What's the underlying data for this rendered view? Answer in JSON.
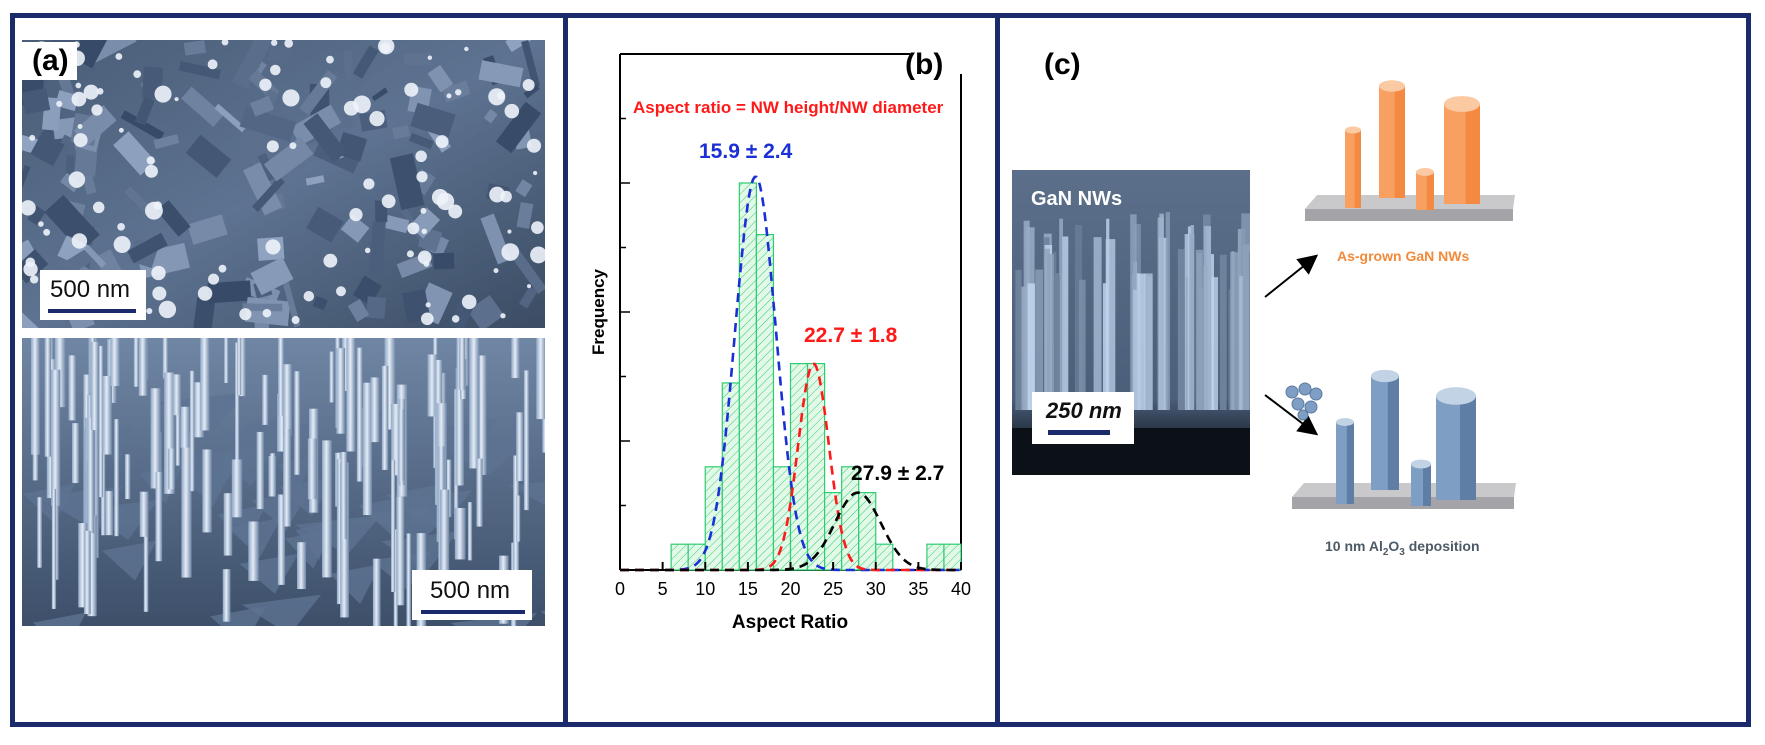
{
  "panels": {
    "a": {
      "label": "(a)",
      "top_scale_text": "500 nm",
      "bottom_scale_text": "500 nm"
    },
    "b": {
      "label": "(b)"
    },
    "c": {
      "label": "(c)",
      "sem_title": "GaN NWs",
      "sem_scale_text": "250 nm",
      "caption_top": "As-grown GaN NWs",
      "caption_bottom_prefix": "10 nm Al",
      "caption_bottom_sub1": "2",
      "caption_bottom_mid": "O",
      "caption_bottom_sub2": "3",
      "caption_bottom_suffix": " deposition"
    }
  },
  "colors": {
    "frame": "#1b2a6b",
    "bar_stroke": "#2ecc71",
    "bar_fill": "#e3f9e8",
    "fit1": "#1a2fd6",
    "fit2": "#ff1a1a",
    "fit3": "#000000",
    "orange_nw": "#f7a062",
    "blue_nw": "#7f9ec3",
    "caption_orange": "#f28a3a",
    "caption_gray": "#4d5a66"
  },
  "chart_data": {
    "type": "bar",
    "xlabel": "Aspect Ratio",
    "ylabel": "Frequency",
    "xlim": [
      0,
      40
    ],
    "ylim": [
      0,
      8
    ],
    "xticks": [
      0,
      5,
      10,
      15,
      20,
      25,
      30,
      35,
      40
    ],
    "bin_width": 2,
    "bins": [
      {
        "x": 7,
        "value": 0.4
      },
      {
        "x": 9,
        "value": 0.4
      },
      {
        "x": 11,
        "value": 1.6
      },
      {
        "x": 13,
        "value": 2.9
      },
      {
        "x": 15,
        "value": 6.0
      },
      {
        "x": 17,
        "value": 5.2
      },
      {
        "x": 19,
        "value": 1.6
      },
      {
        "x": 21,
        "value": 3.2
      },
      {
        "x": 23,
        "value": 3.2
      },
      {
        "x": 25,
        "value": 1.2
      },
      {
        "x": 27,
        "value": 1.6
      },
      {
        "x": 29,
        "value": 1.2
      },
      {
        "x": 31,
        "value": 0.4
      },
      {
        "x": 37,
        "value": 0.4
      },
      {
        "x": 39,
        "value": 0.4
      }
    ],
    "fits": [
      {
        "mean": 15.9,
        "sd": 2.4,
        "peak": 6.1,
        "label": "15.9 ± 2.4"
      },
      {
        "mean": 22.7,
        "sd": 1.8,
        "peak": 3.2,
        "label": "22.7 ± 1.8"
      },
      {
        "mean": 27.9,
        "sd": 2.7,
        "peak": 1.2,
        "label": "27.9 ± 2.7"
      }
    ],
    "annotation": "Aspect ratio = NW height/NW diameter"
  }
}
